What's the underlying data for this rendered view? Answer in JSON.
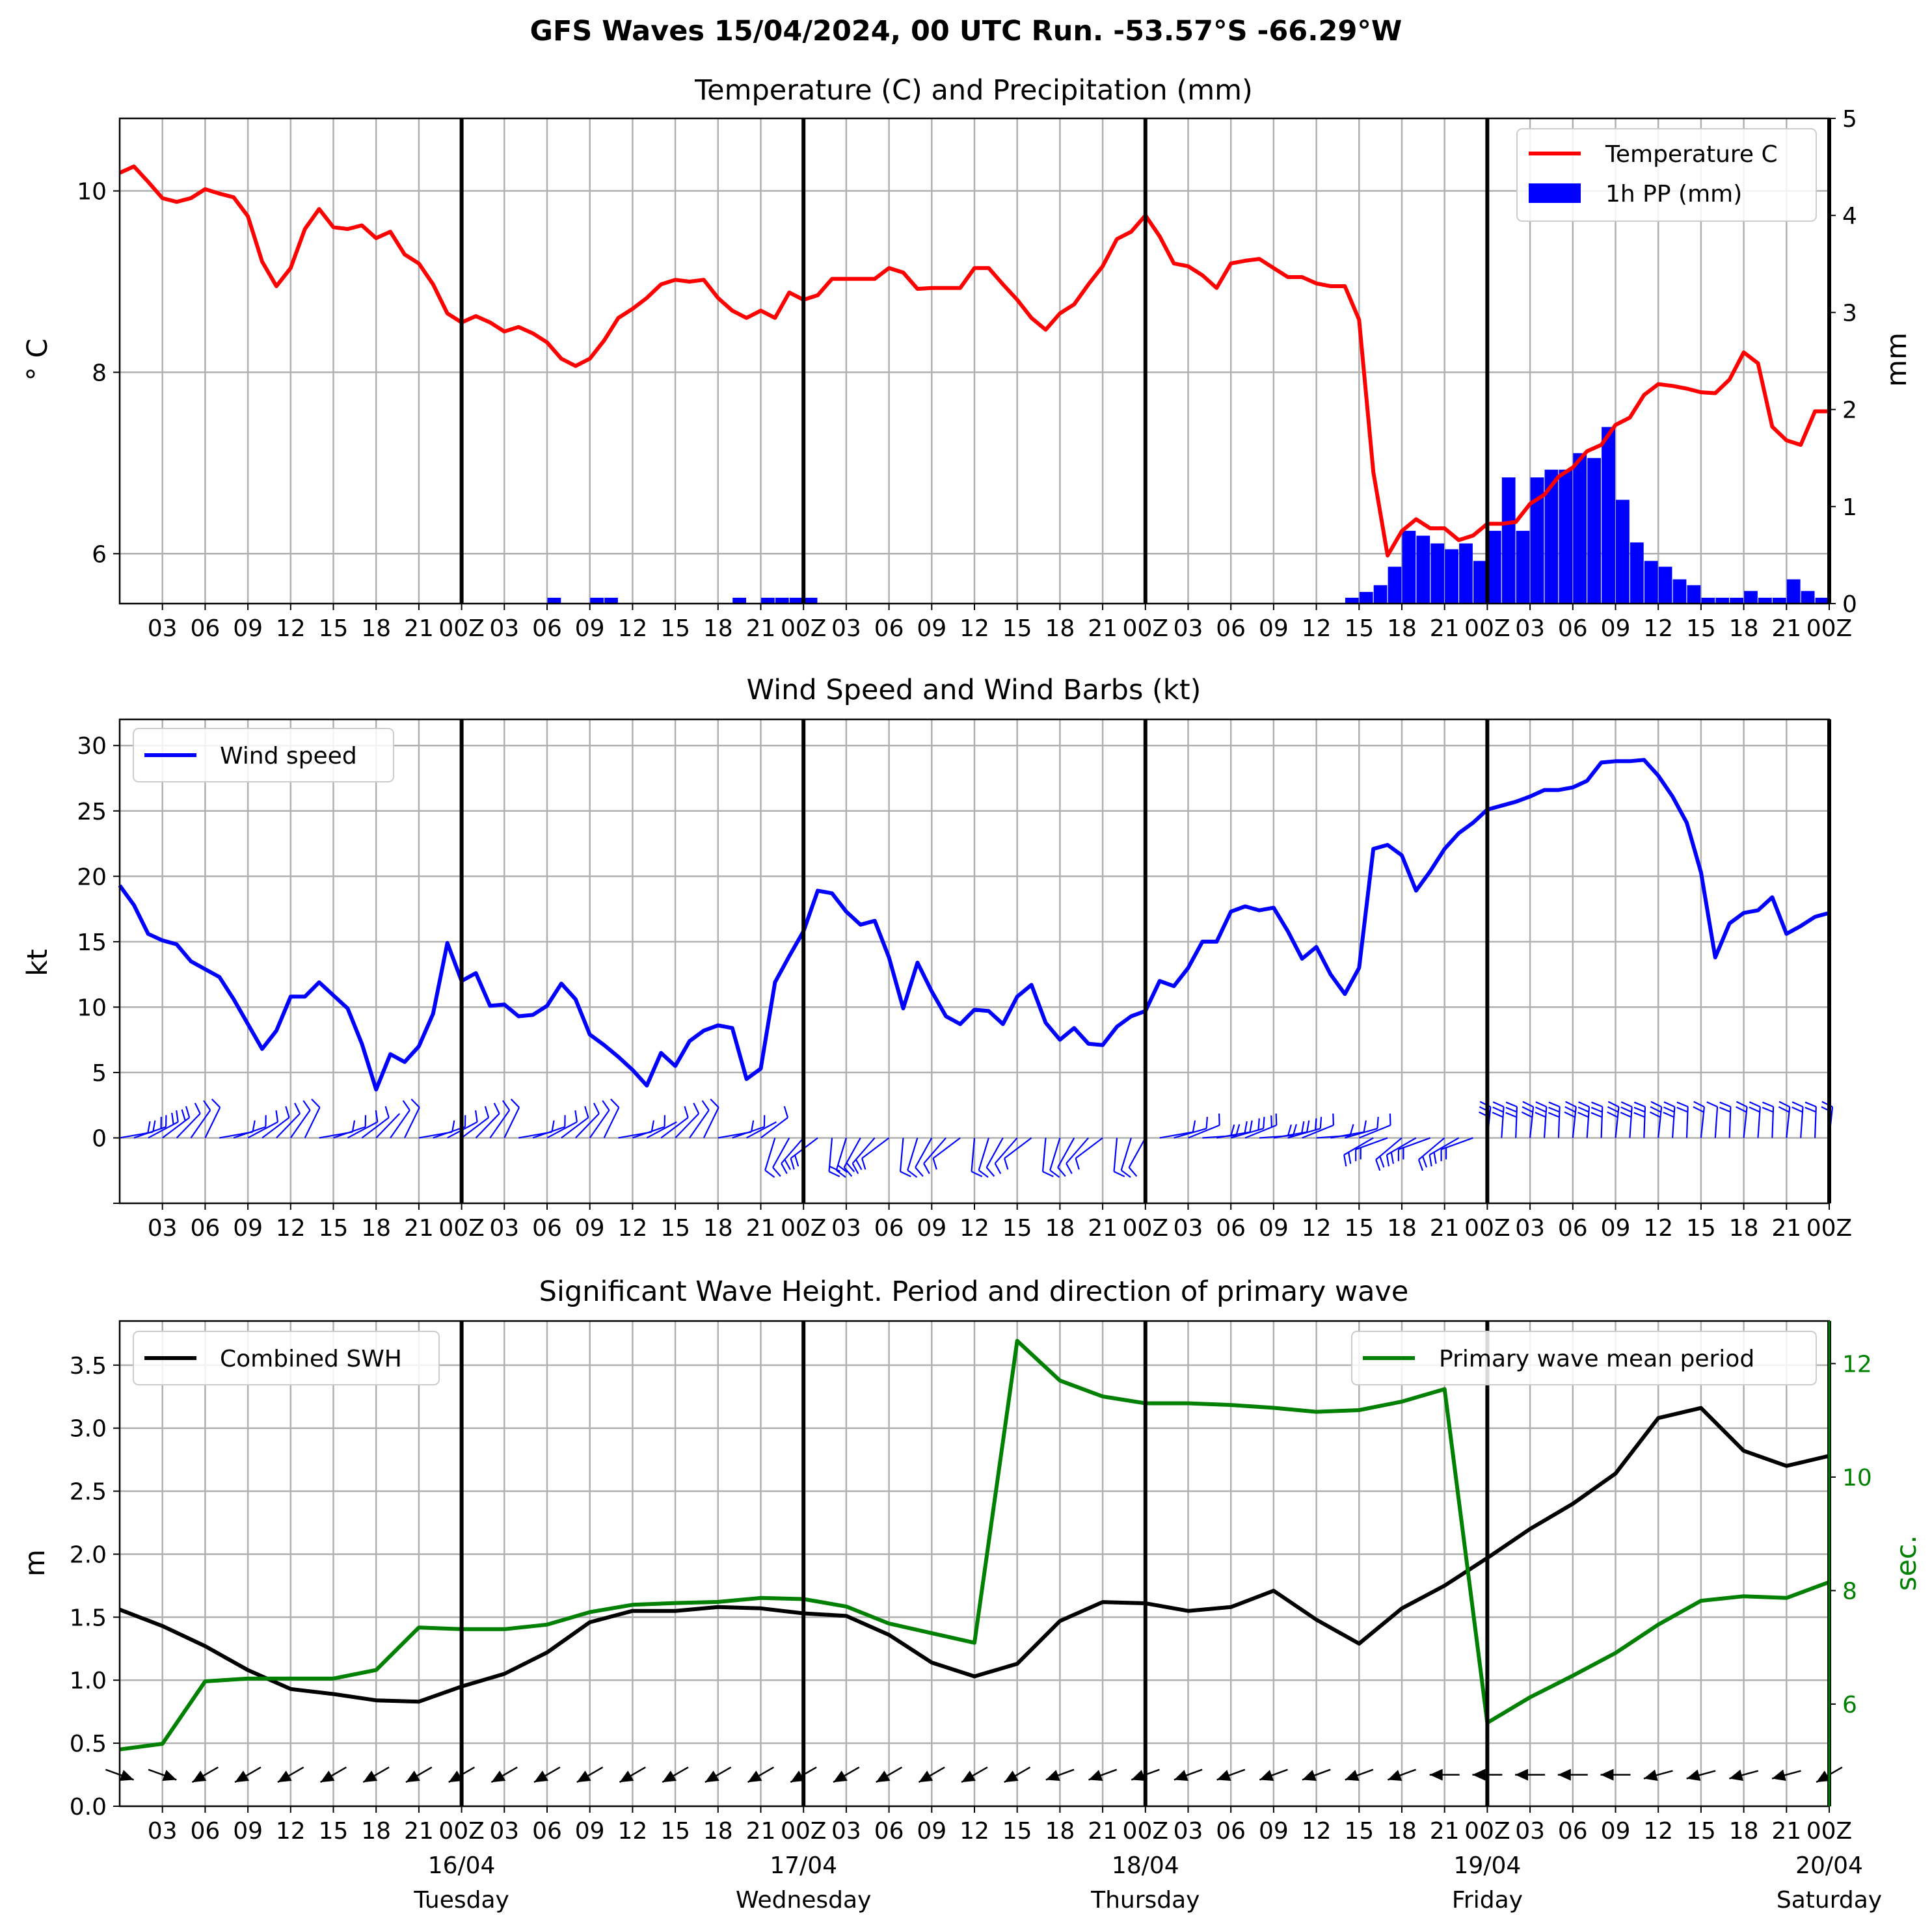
{
  "figure": {
    "title": "GFS Waves 15/04/2024, 00 UTC Run. -53.57°S -66.29°W"
  },
  "x_axis": {
    "hours_per_day_ticks": [
      "03",
      "06",
      "09",
      "12",
      "15",
      "18",
      "21",
      "00Z"
    ],
    "days": [
      {
        "date": "16/04",
        "weekday": "Tuesday"
      },
      {
        "date": "17/04",
        "weekday": "Wednesday"
      },
      {
        "date": "18/04",
        "weekday": "Thursday"
      },
      {
        "date": "19/04",
        "weekday": "Friday"
      },
      {
        "date": "20/04",
        "weekday": "Saturday"
      }
    ]
  },
  "colors": {
    "temperature": "#ff0000",
    "precipitation": "#0000ff",
    "wind": "#0000ff",
    "swh": "#000000",
    "period": "#008000",
    "grid": "#b0b0b0"
  },
  "chart_data": [
    {
      "type": "line",
      "title": "Temperature (C) and Precipitation (mm)",
      "ylabel": "$^\\circ$C",
      "ylabel_display": "° C",
      "ylim": [
        5.45,
        10.8
      ],
      "yticks": [
        6,
        8,
        10
      ],
      "y2label": "mm",
      "y2lim": [
        0,
        5
      ],
      "y2ticks": [
        0,
        1,
        2,
        3,
        4,
        5
      ],
      "x_unit": "hours since 15/04/2024 00Z",
      "xlim": [
        0,
        120
      ],
      "legend": [
        "Temperature C",
        "1h PP (mm)"
      ],
      "legend_position": "upper right",
      "series": [
        {
          "name": "Temperature C",
          "x": [
            0,
            1,
            2,
            3,
            4,
            5,
            6,
            7,
            8,
            9,
            10,
            11,
            12,
            13,
            14,
            15,
            16,
            17,
            18,
            19,
            20,
            21,
            22,
            23,
            24,
            25,
            26,
            27,
            28,
            29,
            30,
            31,
            32,
            33,
            34,
            35,
            36,
            37,
            38,
            39,
            40,
            41,
            42,
            43,
            44,
            45,
            46,
            47,
            48,
            49,
            50,
            51,
            52,
            53,
            54,
            55,
            56,
            57,
            58,
            59,
            60,
            61,
            62,
            63,
            64,
            65,
            66,
            67,
            68,
            69,
            70,
            71,
            72,
            73,
            74,
            75,
            76,
            77,
            78,
            79,
            80,
            81,
            82,
            83,
            84,
            85,
            86,
            87,
            88,
            89,
            90,
            91,
            92,
            93,
            94,
            95,
            96,
            97,
            98,
            99,
            100,
            101,
            102,
            103,
            104,
            105,
            106,
            107,
            108,
            109,
            110,
            111,
            112,
            113,
            114,
            115,
            116,
            117,
            118,
            119,
            120
          ],
          "values": [
            10.2,
            10.27,
            10.1,
            9.92,
            9.88,
            9.92,
            10.02,
            9.97,
            9.93,
            9.72,
            9.22,
            8.95,
            9.15,
            9.58,
            9.8,
            9.6,
            9.58,
            9.62,
            9.48,
            9.55,
            9.3,
            9.2,
            8.97,
            8.65,
            8.55,
            8.62,
            8.55,
            8.45,
            8.5,
            8.43,
            8.33,
            8.15,
            8.07,
            8.15,
            8.35,
            8.6,
            8.7,
            8.82,
            8.97,
            9.02,
            9.0,
            9.02,
            8.82,
            8.68,
            8.6,
            8.68,
            8.6,
            8.88,
            8.8,
            8.85,
            9.03,
            9.03,
            9.03,
            9.03,
            9.15,
            9.1,
            8.92,
            8.93,
            8.93,
            8.93,
            9.15,
            9.15,
            8.97,
            8.8,
            8.6,
            8.47,
            8.65,
            8.75,
            8.97,
            9.17,
            9.47,
            9.55,
            9.73,
            9.5,
            9.2,
            9.17,
            9.07,
            8.93,
            9.2,
            9.23,
            9.25,
            9.15,
            9.05,
            9.05,
            8.98,
            8.95,
            8.95,
            8.58,
            6.9,
            5.98,
            6.25,
            6.38,
            6.28,
            6.28,
            6.15,
            6.2,
            6.33,
            6.33,
            6.35,
            6.55,
            6.65,
            6.85,
            6.95,
            7.13,
            7.2,
            7.42,
            7.5,
            7.75,
            7.87,
            7.85,
            7.82,
            7.78,
            7.77,
            7.92,
            8.22,
            8.1,
            7.4,
            7.25,
            7.2,
            7.57,
            7.57
          ]
        },
        {
          "name": "1h PP (mm)",
          "type": "bar",
          "x": [
            31,
            34,
            35,
            44,
            46,
            47,
            48,
            49,
            87,
            88,
            89,
            90,
            91,
            92,
            93,
            94,
            95,
            96,
            97,
            98,
            99,
            100,
            101,
            102,
            103,
            104,
            105,
            106,
            107,
            108,
            109,
            110,
            111,
            112,
            113,
            114,
            115,
            116,
            117,
            118,
            119,
            120
          ],
          "values": [
            0.06,
            0.06,
            0.06,
            0.06,
            0.06,
            0.06,
            0.06,
            0.06,
            0.06,
            0.12,
            0.19,
            0.38,
            0.75,
            0.7,
            0.62,
            0.56,
            0.62,
            0.44,
            0.75,
            1.3,
            0.75,
            1.3,
            1.38,
            1.38,
            1.55,
            1.5,
            1.82,
            1.07,
            0.63,
            0.44,
            0.38,
            0.25,
            0.19,
            0.06,
            0.06,
            0.06,
            0.13,
            0.06,
            0.06,
            0.25,
            0.13,
            0.06
          ]
        }
      ]
    },
    {
      "type": "line",
      "title": "Wind Speed and Wind Barbs (kt)",
      "ylabel": "kt",
      "ylim": [
        -5,
        32
      ],
      "yticks": [
        0,
        5,
        10,
        15,
        20,
        25,
        30
      ],
      "x_unit": "hours since 15/04/2024 00Z",
      "xlim": [
        0,
        120
      ],
      "legend": [
        "Wind speed"
      ],
      "legend_position": "upper left",
      "series": [
        {
          "name": "Wind speed",
          "x": [
            0,
            1,
            2,
            3,
            4,
            5,
            6,
            7,
            8,
            9,
            10,
            11,
            12,
            13,
            14,
            15,
            16,
            17,
            18,
            19,
            20,
            21,
            22,
            23,
            24,
            25,
            26,
            27,
            28,
            29,
            30,
            31,
            32,
            33,
            34,
            35,
            36,
            37,
            38,
            39,
            40,
            41,
            42,
            43,
            44,
            45,
            46,
            47,
            48,
            49,
            50,
            51,
            52,
            53,
            54,
            55,
            56,
            57,
            58,
            59,
            60,
            61,
            62,
            63,
            64,
            65,
            66,
            67,
            68,
            69,
            70,
            71,
            72,
            73,
            74,
            75,
            76,
            77,
            78,
            79,
            80,
            81,
            82,
            83,
            84,
            85,
            86,
            87,
            88,
            89,
            90,
            91,
            92,
            93,
            94,
            95,
            96,
            97,
            98,
            99,
            100,
            101,
            102,
            103,
            104,
            105,
            106,
            107,
            108,
            109,
            110,
            111,
            112,
            113,
            114,
            115,
            116,
            117,
            118,
            119,
            120
          ],
          "values": [
            19.3,
            17.8,
            15.6,
            15.1,
            14.8,
            13.5,
            12.9,
            12.3,
            10.6,
            8.7,
            6.8,
            8.2,
            10.8,
            10.8,
            11.9,
            10.9,
            9.9,
            7.2,
            3.7,
            6.4,
            5.8,
            7.0,
            9.5,
            14.9,
            12.0,
            12.6,
            10.1,
            10.2,
            9.3,
            9.4,
            10.1,
            11.8,
            10.6,
            7.9,
            7.1,
            6.2,
            5.2,
            4.0,
            6.5,
            5.5,
            7.4,
            8.2,
            8.6,
            8.4,
            4.5,
            5.3,
            11.9,
            13.9,
            15.8,
            18.9,
            18.7,
            17.3,
            16.3,
            16.6,
            13.8,
            9.9,
            13.4,
            11.2,
            9.3,
            8.7,
            9.8,
            9.7,
            8.7,
            10.8,
            11.7,
            8.8,
            7.5,
            8.4,
            7.2,
            7.1,
            8.5,
            9.3,
            9.7,
            12.0,
            11.6,
            13.0,
            15.0,
            15.0,
            17.3,
            17.7,
            17.4,
            17.6,
            15.8,
            13.7,
            14.6,
            12.5,
            11.0,
            13.0,
            22.1,
            22.4,
            21.6,
            18.9,
            20.4,
            22.1,
            23.3,
            24.1,
            25.1,
            25.4,
            25.7,
            26.1,
            26.6,
            26.6,
            26.8,
            27.3,
            28.7,
            28.8,
            28.8,
            28.9,
            27.7,
            26.1,
            24.1,
            20.3,
            13.8,
            16.4,
            17.2,
            17.4,
            18.4,
            15.6,
            16.2,
            16.9,
            17.2
          ]
        }
      ],
      "wind_barbs_shown": true
    },
    {
      "type": "line",
      "title": "Significant Wave Height. Period and direction of primary wave",
      "ylabel": "m",
      "ylim": [
        0,
        3.85
      ],
      "yticks": [
        0.0,
        0.5,
        1.0,
        1.5,
        2.0,
        2.5,
        3.0,
        3.5
      ],
      "y2label": "sec.",
      "y2lim": [
        4.2,
        12.75
      ],
      "y2ticks": [
        6,
        8,
        10,
        12
      ],
      "x_unit": "hours since 15/04/2024 00Z",
      "xlim": [
        0,
        120
      ],
      "legend_left": [
        "Combined SWH"
      ],
      "legend_right": [
        "Primary wave mean period"
      ],
      "series": [
        {
          "name": "Combined SWH",
          "x": [
            0,
            3,
            6,
            9,
            12,
            15,
            18,
            21,
            24,
            27,
            30,
            33,
            36,
            39,
            42,
            45,
            48,
            51,
            54,
            57,
            60,
            63,
            66,
            69,
            72,
            75,
            78,
            81,
            84,
            87,
            90,
            93,
            96,
            99,
            102,
            105,
            108,
            111,
            114,
            117,
            120
          ],
          "values": [
            1.56,
            1.43,
            1.27,
            1.08,
            0.93,
            0.89,
            0.84,
            0.83,
            0.95,
            1.05,
            1.22,
            1.46,
            1.55,
            1.55,
            1.58,
            1.57,
            1.53,
            1.51,
            1.36,
            1.14,
            1.03,
            1.13,
            1.47,
            1.62,
            1.61,
            1.55,
            1.58,
            1.71,
            1.48,
            1.29,
            1.57,
            1.75,
            1.97,
            2.2,
            2.4,
            2.64,
            3.08,
            3.16,
            2.82,
            2.7,
            2.78
          ]
        },
        {
          "name": "Primary wave mean period",
          "x": [
            0,
            3,
            6,
            9,
            12,
            15,
            18,
            21,
            24,
            27,
            30,
            33,
            36,
            39,
            42,
            45,
            48,
            51,
            54,
            57,
            60,
            63,
            66,
            69,
            72,
            75,
            78,
            81,
            84,
            87,
            90,
            93,
            96,
            99,
            102,
            105,
            108,
            111,
            114,
            117,
            120
          ],
          "values": [
            5.2,
            5.3,
            6.4,
            6.45,
            6.45,
            6.45,
            6.6,
            7.35,
            7.32,
            7.32,
            7.4,
            7.62,
            7.75,
            7.78,
            7.8,
            7.87,
            7.85,
            7.72,
            7.42,
            7.25,
            7.08,
            12.4,
            11.7,
            11.42,
            11.3,
            11.3,
            11.27,
            11.22,
            11.15,
            11.18,
            11.33,
            11.55,
            5.67,
            6.12,
            6.5,
            6.9,
            7.4,
            7.82,
            7.9,
            7.87,
            8.15
          ]
        }
      ],
      "wave_direction_arrows_shown": true
    }
  ]
}
